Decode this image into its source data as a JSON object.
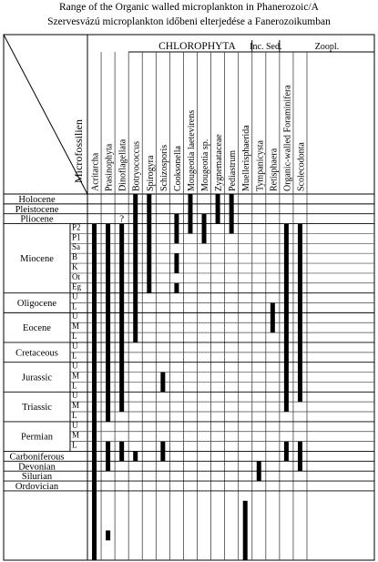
{
  "title_line1": "Range of the Organic walled microplankton in Phanerozoic/A",
  "title_line2": "Szervesvázú microplankton időbeni elterjedése a Fanerozoikumban",
  "corner_label": "Microfossilien",
  "groups": [
    {
      "label": "CHLOROPHYTA",
      "from": 4,
      "to": 11
    },
    {
      "label": "Inc. Sed.",
      "from": 12,
      "to": 13
    },
    {
      "label": "Zoopl.",
      "from": 14,
      "to": 15
    }
  ],
  "taxa": [
    "Acritarcha",
    "Prasinophyta",
    "Dinoflagellata",
    "Botryococcus",
    "Spirogyra",
    "Schizosporis",
    "Cooksonella",
    "Mougeotia laetevirens",
    "Mougeotia sp.",
    "Zygnemataceae",
    "Pediastrum",
    "Muellerisphaerida",
    "Tympanicysta",
    "Retisphaera",
    "Organic-walled Foraminifera",
    "Scolecodonta"
  ],
  "periods": [
    {
      "label": "Holocene",
      "subs": [
        ""
      ]
    },
    {
      "label": "Pleistocene",
      "subs": [
        ""
      ]
    },
    {
      "label": "Pliocene",
      "subs": [
        ""
      ]
    },
    {
      "label": "Miocene",
      "subs": [
        "P2",
        "P1",
        "Sa",
        "B",
        "K",
        "Ot",
        "Eg"
      ]
    },
    {
      "label": "Oligocene",
      "subs": [
        "U",
        "L"
      ]
    },
    {
      "label": "Eocene",
      "subs": [
        "U",
        "M",
        "L"
      ]
    },
    {
      "label": "Cretaceous",
      "subs": [
        "U",
        "L"
      ]
    },
    {
      "label": "Jurassic",
      "subs": [
        "U",
        "M",
        "L"
      ]
    },
    {
      "label": "Triassic",
      "subs": [
        "U",
        "M",
        "L"
      ]
    },
    {
      "label": "Permian",
      "subs": [
        "U",
        "M",
        "L"
      ]
    },
    {
      "label": "Carboniferous",
      "subs": [
        ""
      ]
    },
    {
      "label": "Devonian",
      "subs": [
        ""
      ]
    },
    {
      "label": "Silurian",
      "subs": [
        ""
      ]
    },
    {
      "label": "Ordovician",
      "subs": [
        ""
      ]
    }
  ],
  "ranges": [
    {
      "col": 0,
      "from": 3,
      "to": 36
    },
    {
      "col": 1,
      "from": 3,
      "to": 22
    },
    {
      "col": 1,
      "from": 25,
      "to": 27
    },
    {
      "col": 1,
      "from": 34,
      "to": 34
    },
    {
      "col": 2,
      "from": 3,
      "to": 21
    },
    {
      "col": 2,
      "from": 25,
      "to": 26
    },
    {
      "col": 3,
      "from": 0,
      "to": 14
    },
    {
      "col": 3,
      "from": 26,
      "to": 26
    },
    {
      "col": 4,
      "from": 0,
      "to": 9
    },
    {
      "col": 5,
      "from": 18,
      "to": 19
    },
    {
      "col": 5,
      "from": 25,
      "to": 26
    },
    {
      "col": 6,
      "from": 2,
      "to": 4
    },
    {
      "col": 6,
      "from": 6,
      "to": 7
    },
    {
      "col": 6,
      "from": 9,
      "to": 9
    },
    {
      "col": 7,
      "from": 0,
      "to": 3
    },
    {
      "col": 8,
      "from": 2,
      "to": 4
    },
    {
      "col": 9,
      "from": 0,
      "to": 2
    },
    {
      "col": 10,
      "from": 0,
      "to": 3
    },
    {
      "col": 12,
      "from": 27,
      "to": 28
    },
    {
      "col": 11,
      "from": 31,
      "to": 36
    },
    {
      "col": 13,
      "from": 11,
      "to": 13
    },
    {
      "col": 14,
      "from": 3,
      "to": 21
    },
    {
      "col": 14,
      "from": 25,
      "to": 26
    },
    {
      "col": 15,
      "from": 3,
      "to": 20
    },
    {
      "col": 15,
      "from": 25,
      "to": 27
    }
  ],
  "question_marks": [
    {
      "col": 2,
      "row": 2,
      "text": "?"
    }
  ]
}
